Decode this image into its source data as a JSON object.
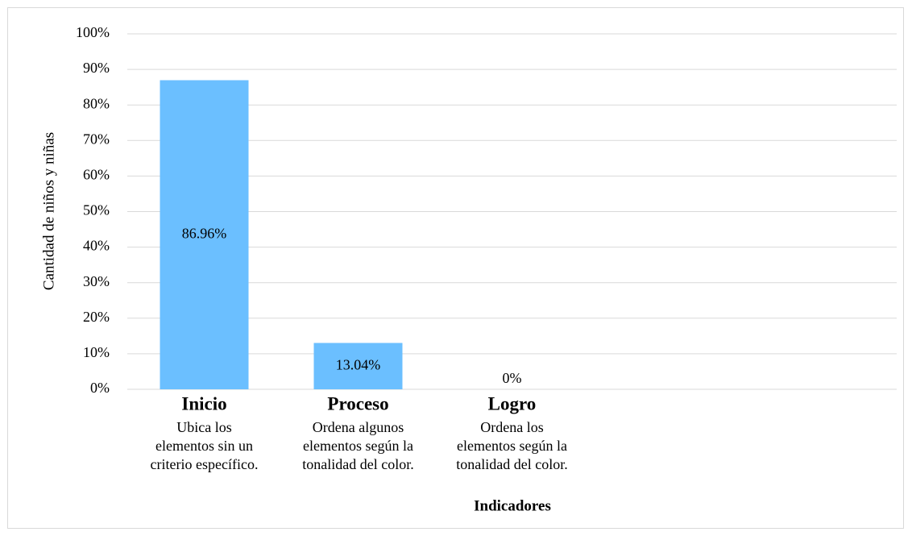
{
  "chart_data": {
    "type": "bar",
    "y_axis_label": "Cantidad de niños y niñas",
    "x_axis_label": "Indicadores",
    "categories": [
      "Inicio",
      "Proceso",
      "Logro",
      null,
      null
    ],
    "category_descriptions": [
      [
        "Ubica los",
        "elementos sin un",
        "criterio específico."
      ],
      [
        "Ordena algunos",
        "elementos según la",
        "tonalidad del color."
      ],
      [
        "Ordena los",
        "elementos según la",
        "tonalidad del color."
      ],
      null,
      null
    ],
    "values": [
      86.96,
      13.04,
      0,
      null,
      null
    ],
    "value_labels": [
      "86.96%",
      "13.04%",
      "0%",
      null,
      null
    ],
    "color": "#6bbfff",
    "ylim": [
      0,
      100
    ],
    "yticks": [
      {
        "value": 0,
        "label": "0%"
      },
      {
        "value": 10,
        "label": "10%"
      },
      {
        "value": 20,
        "label": "20%"
      },
      {
        "value": 30,
        "label": "30%"
      },
      {
        "value": 40,
        "label": "40%"
      },
      {
        "value": 50,
        "label": "50%"
      },
      {
        "value": 60,
        "label": "60%"
      },
      {
        "value": 70,
        "label": "70%"
      },
      {
        "value": 80,
        "label": "80%"
      },
      {
        "value": 90,
        "label": "90%"
      },
      {
        "value": 100,
        "label": "100%"
      }
    ],
    "grid": true
  }
}
